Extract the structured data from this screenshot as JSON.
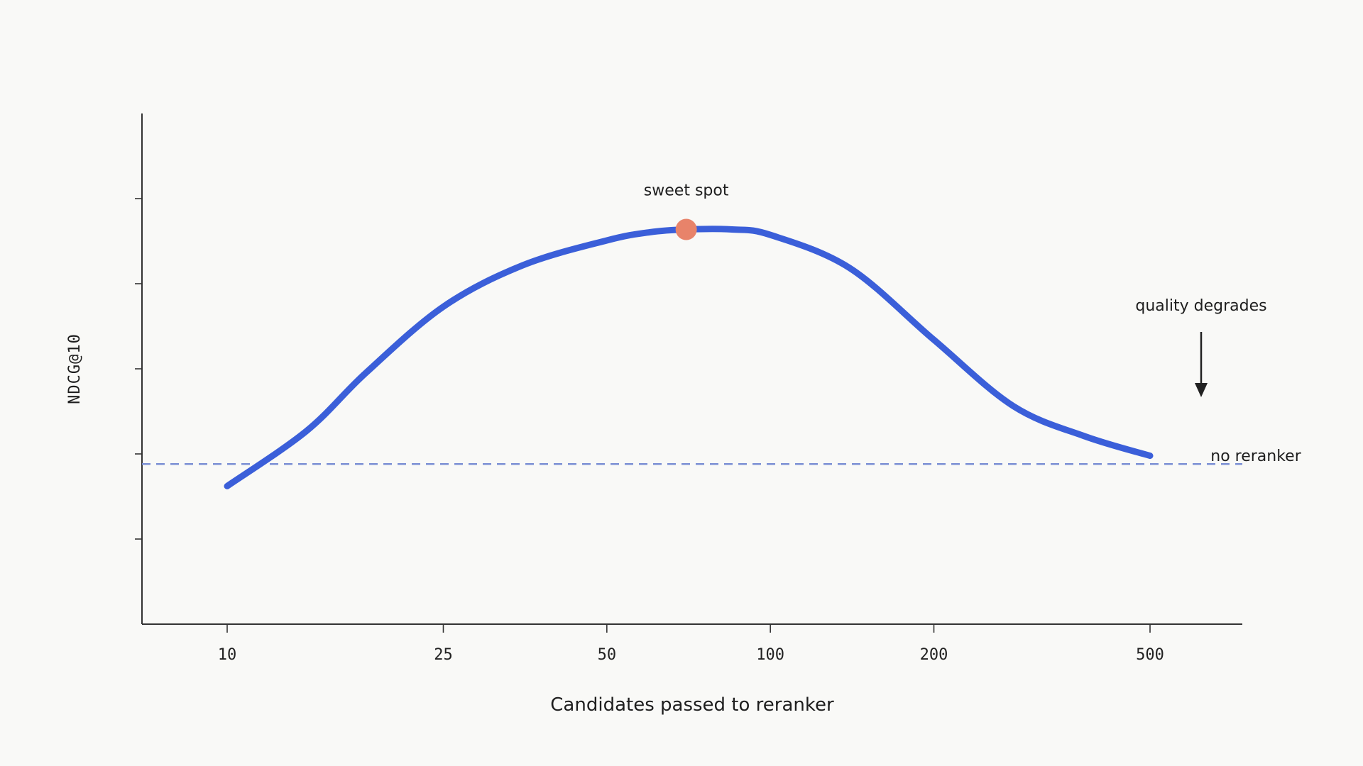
{
  "chart_data": {
    "type": "line",
    "x_scale": "log",
    "categories": [
      "10",
      "25",
      "50",
      "100",
      "200",
      "500"
    ],
    "x": [
      10,
      25,
      50,
      100,
      200,
      500
    ],
    "xlabel": "Candidates passed to reranker",
    "ylabel": "NDCG@10",
    "y_tick_labels_shown": false,
    "grid": false,
    "series": [
      {
        "x": [
          10,
          14,
          18,
          25,
          35,
          50,
          60,
          70,
          85,
          100,
          140,
          200,
          280,
          380,
          500
        ],
        "values": [
          0.15,
          0.35,
          0.56,
          0.8,
          0.95,
          1.04,
          1.07,
          1.08,
          1.08,
          1.06,
          0.94,
          0.68,
          0.44,
          0.33,
          0.26
        ]
      }
    ],
    "baseline": {
      "value": 0.23,
      "label": "no reranker"
    },
    "ylim": [
      -0.35,
      1.5
    ],
    "annotations": [
      {
        "text": "sweet spot",
        "x": 70,
        "y": 1.08,
        "marker": true
      },
      {
        "text": "quality degrades",
        "arrow": "down"
      }
    ],
    "colors": {
      "curve": "#3b5fd9",
      "baseline": "#7b8fd4",
      "marker": "#e8836a",
      "axis": "#333333",
      "background": "#f9f9f7"
    }
  }
}
